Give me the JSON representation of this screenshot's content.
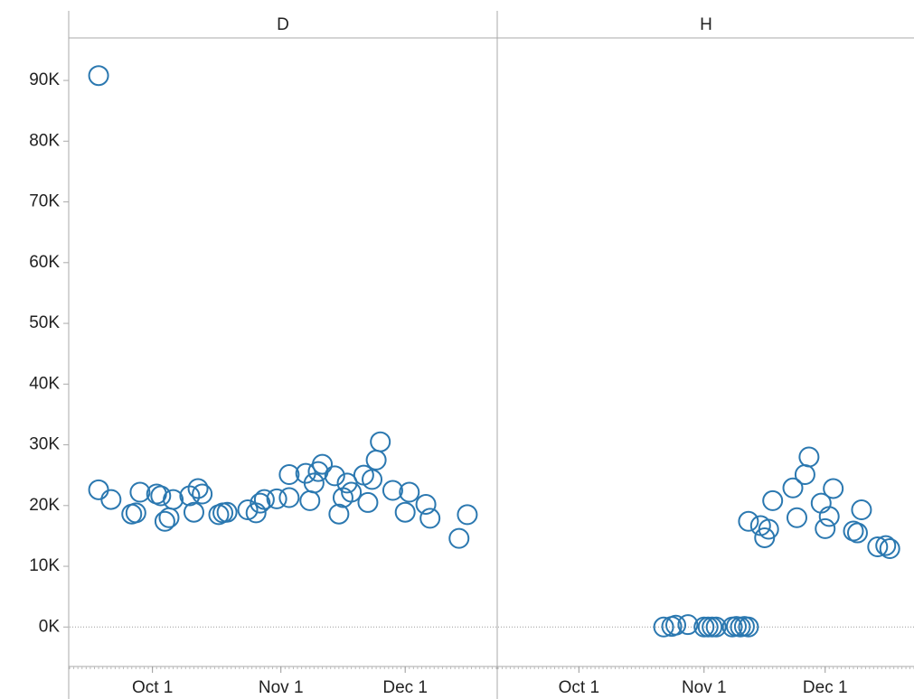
{
  "chart_data": {
    "type": "scatter",
    "color": "#2b78b0",
    "ylim": [
      -6500,
      97000
    ],
    "yticks": [
      {
        "value": 0,
        "label": "0K"
      },
      {
        "value": 10000,
        "label": "10K"
      },
      {
        "value": 20000,
        "label": "20K"
      },
      {
        "value": 30000,
        "label": "30K"
      },
      {
        "value": 40000,
        "label": "40K"
      },
      {
        "value": 50000,
        "label": "50K"
      },
      {
        "value": 60000,
        "label": "60K"
      },
      {
        "value": 70000,
        "label": "70K"
      },
      {
        "value": 80000,
        "label": "80K"
      },
      {
        "value": 90000,
        "label": "90K"
      }
    ],
    "xlim": [
      "09-11",
      "12-23"
    ],
    "xticks": [
      {
        "value": "10-01",
        "label": "Oct 1"
      },
      {
        "value": "11-01",
        "label": "Nov 1"
      },
      {
        "value": "12-01",
        "label": "Dec 1"
      }
    ],
    "zero_line": true,
    "facets": [
      {
        "title": "D",
        "x": [
          "09-18",
          "09-18",
          "09-21",
          "09-26",
          "09-27",
          "09-28",
          "10-02",
          "10-03",
          "10-04",
          "10-05",
          "10-06",
          "10-10",
          "10-11",
          "10-12",
          "10-13",
          "10-17",
          "10-18",
          "10-19",
          "10-24",
          "10-26",
          "10-27",
          "10-28",
          "10-31",
          "11-03",
          "11-03",
          "11-07",
          "11-08",
          "11-09",
          "11-10",
          "11-11",
          "11-14",
          "11-15",
          "11-16",
          "11-17",
          "11-18",
          "11-21",
          "11-22",
          "11-23",
          "11-24",
          "11-25",
          "11-28",
          "12-01",
          "12-02",
          "12-06",
          "12-07",
          "12-14",
          "12-16"
        ],
        "values": [
          90800,
          22600,
          21000,
          18600,
          18800,
          22200,
          21900,
          21600,
          17400,
          18000,
          21000,
          21600,
          18900,
          22800,
          21900,
          18500,
          18800,
          18900,
          19300,
          18800,
          20400,
          21000,
          21100,
          21300,
          25100,
          25300,
          20800,
          23700,
          25600,
          26800,
          24900,
          18600,
          21300,
          23700,
          22200,
          25000,
          20500,
          24300,
          27500,
          30500,
          22500,
          18900,
          22200,
          20200,
          17900,
          14600,
          18500
        ]
      },
      {
        "title": "H",
        "x": [
          "10-22",
          "10-24",
          "10-25",
          "10-28",
          "11-01",
          "11-02",
          "11-03",
          "11-04",
          "11-08",
          "11-09",
          "11-10",
          "11-11",
          "11-12",
          "11-12",
          "11-15",
          "11-16",
          "11-17",
          "11-18",
          "11-23",
          "11-24",
          "11-26",
          "11-27",
          "11-30",
          "12-01",
          "12-02",
          "12-03",
          "12-08",
          "12-09",
          "12-10",
          "12-14",
          "12-16",
          "12-17"
        ],
        "values": [
          0,
          100,
          300,
          400,
          0,
          0,
          0,
          0,
          0,
          100,
          0,
          100,
          0,
          17400,
          16700,
          14700,
          16100,
          20800,
          22900,
          18000,
          25100,
          28000,
          20400,
          16200,
          18200,
          22800,
          15800,
          15500,
          19300,
          13200,
          13400,
          12900
        ]
      }
    ]
  }
}
